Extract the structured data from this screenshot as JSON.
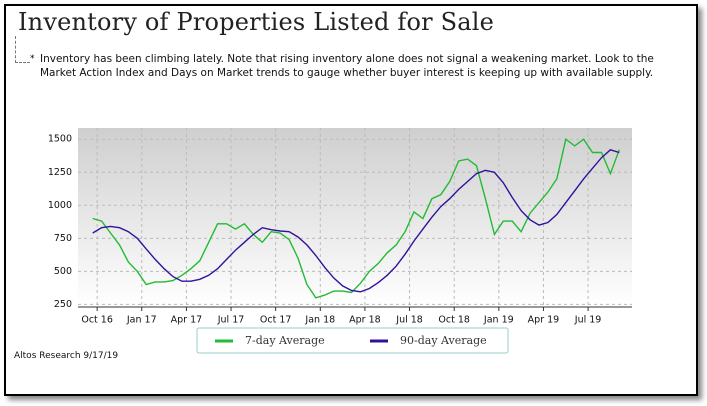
{
  "title": "Inventory of Properties Listed for Sale",
  "note": "Inventory has been climbing lately. Note that rising inventory alone does not signal a weakening market. Look to the Market Action Index and Days on Market trends to gauge whether buyer interest is keeping up with available supply.",
  "source": "Altos Research 9/17/19",
  "chart_data": {
    "type": "line",
    "x": [
      -0.1,
      0.1,
      0.3,
      0.5,
      0.7,
      0.9,
      1.1,
      1.3,
      1.5,
      1.7,
      1.9,
      2.1,
      2.3,
      2.5,
      2.7,
      2.9,
      3.1,
      3.3,
      3.5,
      3.7,
      3.9,
      4.1,
      4.3,
      4.5,
      4.7,
      4.9,
      5.1,
      5.3,
      5.5,
      5.7,
      5.9,
      6.1,
      6.3,
      6.5,
      6.7,
      6.9,
      7.1,
      7.3,
      7.5,
      7.7,
      7.9,
      8.1,
      8.3,
      8.5,
      8.7,
      8.9,
      9.1,
      9.3,
      9.5,
      9.7,
      9.9,
      10.1,
      10.3,
      10.5,
      10.7,
      10.9,
      11.1,
      11.3,
      11.5,
      11.7
    ],
    "series": [
      {
        "name": "7-day Average",
        "color": "#22bb33",
        "values": [
          900,
          880,
          790,
          700,
          570,
          500,
          400,
          420,
          420,
          430,
          470,
          520,
          580,
          720,
          860,
          860,
          820,
          860,
          780,
          720,
          800,
          790,
          740,
          600,
          400,
          300,
          320,
          350,
          350,
          340,
          410,
          500,
          560,
          640,
          700,
          800,
          950,
          900,
          1050,
          1080,
          1180,
          1335,
          1350,
          1300,
          1050,
          780,
          880,
          880,
          800,
          940,
          1020,
          1100,
          1200,
          1500,
          1450,
          1500,
          1400,
          1400,
          1240,
          1420
        ]
      },
      {
        "name": "90-day Average",
        "color": "#33119e",
        "values": [
          790,
          830,
          840,
          830,
          800,
          750,
          670,
          590,
          520,
          460,
          425,
          425,
          440,
          470,
          520,
          590,
          660,
          720,
          780,
          830,
          815,
          805,
          800,
          760,
          700,
          620,
          530,
          450,
          390,
          355,
          345,
          370,
          415,
          470,
          540,
          630,
          730,
          820,
          910,
          990,
          1050,
          1120,
          1180,
          1240,
          1265,
          1250,
          1170,
          1060,
          960,
          890,
          850,
          870,
          930,
          1020,
          1110,
          1200,
          1280,
          1360,
          1420,
          1400
        ]
      }
    ],
    "xlim": [
      -0.16,
      11.76
    ],
    "xticks": [
      {
        "value": 0,
        "label": "Oct 16"
      },
      {
        "value": 1,
        "label": "Jan 17"
      },
      {
        "value": 2,
        "label": "Apr 17"
      },
      {
        "value": 3,
        "label": "Jul 17"
      },
      {
        "value": 4,
        "label": "Oct 17"
      },
      {
        "value": 5,
        "label": "Jan 18"
      },
      {
        "value": 6,
        "label": "Apr 18"
      },
      {
        "value": 7,
        "label": "Jul 18"
      },
      {
        "value": 8,
        "label": "Oct 18"
      },
      {
        "value": 9,
        "label": "Jan 19"
      },
      {
        "value": 10,
        "label": "Apr 19"
      },
      {
        "value": 11,
        "label": "Jul 19"
      }
    ],
    "ylim": [
      230,
      1570
    ],
    "yticks": [
      250,
      500,
      750,
      1000,
      1250,
      1500
    ],
    "grid": true,
    "legend": "bottom"
  }
}
